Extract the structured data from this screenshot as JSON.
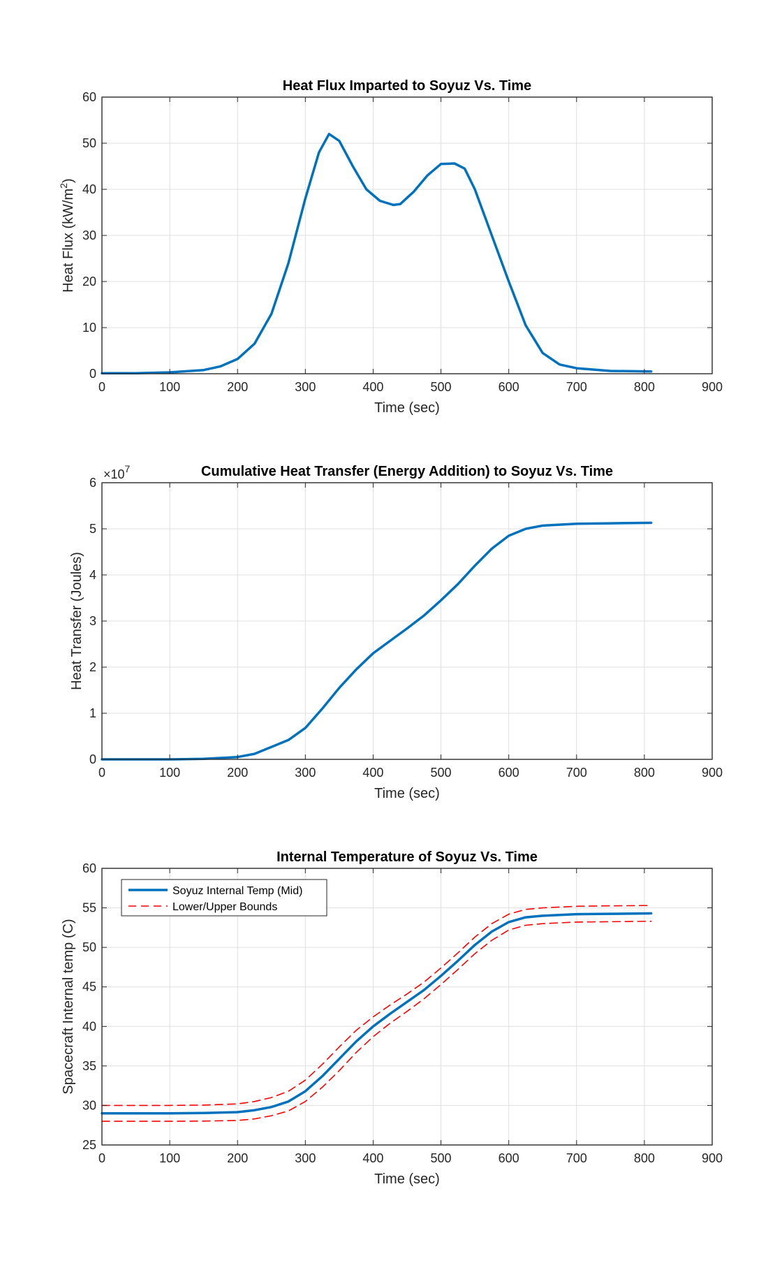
{
  "colors": {
    "main_line": "#0072BD",
    "bound_line": "#FF0000",
    "axis": "#262626",
    "grid": "#DFDFDF"
  },
  "chart_data": [
    {
      "type": "line",
      "title": "Heat Flux Imparted to Soyuz Vs. Time",
      "xlabel": "Time (sec)",
      "ylabel": "Heat Flux (kW/m",
      "ylabel_sup": "2",
      "ylabel_end": ")",
      "xlim": [
        0,
        900
      ],
      "ylim": [
        0,
        60
      ],
      "xticks": [
        0,
        100,
        200,
        300,
        400,
        500,
        600,
        700,
        800,
        900
      ],
      "yticks": [
        0,
        10,
        20,
        30,
        40,
        50,
        60
      ],
      "exponent_base": "",
      "exponent_power": "",
      "grid": true,
      "legend": [],
      "series": [
        {
          "name": "Heat Flux",
          "style": "solid",
          "x": [
            0,
            50,
            100,
            150,
            175,
            200,
            225,
            250,
            275,
            300,
            320,
            335,
            350,
            370,
            390,
            410,
            430,
            440,
            460,
            480,
            500,
            520,
            535,
            550,
            570,
            600,
            625,
            650,
            675,
            700,
            750,
            810
          ],
          "y": [
            0.1,
            0.1,
            0.3,
            0.8,
            1.6,
            3.2,
            6.5,
            13,
            24,
            38,
            48,
            52,
            50.5,
            45,
            40,
            37.5,
            36.6,
            36.8,
            39.5,
            43,
            45.5,
            45.6,
            44.5,
            40,
            32,
            20,
            10.5,
            4.5,
            2,
            1.2,
            0.6,
            0.5
          ]
        }
      ]
    },
    {
      "type": "line",
      "title": "Cumulative Heat Transfer (Energy Addition) to Soyuz Vs. Time",
      "xlabel": "Time (sec)",
      "ylabel": "Heat Transfer (Joules)",
      "ylabel_sup": "",
      "ylabel_end": "",
      "xlim": [
        0,
        900
      ],
      "ylim": [
        0,
        6
      ],
      "xticks": [
        0,
        100,
        200,
        300,
        400,
        500,
        600,
        700,
        800,
        900
      ],
      "yticks": [
        0,
        1,
        2,
        3,
        4,
        5,
        6
      ],
      "exponent_base": "×10",
      "exponent_power": "7",
      "grid": true,
      "legend": [],
      "series": [
        {
          "name": "Cumulative Heat Transfer",
          "style": "solid",
          "x": [
            0,
            100,
            150,
            200,
            225,
            250,
            275,
            300,
            325,
            350,
            375,
            400,
            425,
            450,
            475,
            500,
            525,
            550,
            575,
            600,
            625,
            650,
            700,
            750,
            810
          ],
          "y": [
            0,
            0,
            0.01,
            0.05,
            0.12,
            0.27,
            0.42,
            0.68,
            1.1,
            1.55,
            1.95,
            2.3,
            2.57,
            2.84,
            3.12,
            3.45,
            3.8,
            4.2,
            4.57,
            4.85,
            5.0,
            5.07,
            5.11,
            5.12,
            5.13
          ]
        }
      ]
    },
    {
      "type": "line",
      "title": "Internal Temperature of Soyuz Vs. Time",
      "xlabel": "Time (sec)",
      "ylabel": "Spacecraft Internal temp (C)",
      "ylabel_sup": "",
      "ylabel_end": "",
      "xlim": [
        0,
        900
      ],
      "ylim": [
        25,
        60
      ],
      "xticks": [
        0,
        100,
        200,
        300,
        400,
        500,
        600,
        700,
        800,
        900
      ],
      "yticks": [
        25,
        30,
        35,
        40,
        45,
        50,
        55,
        60
      ],
      "exponent_base": "",
      "exponent_power": "",
      "grid": true,
      "legend": [
        "Soyuz Internal Temp (Mid)",
        "Lower/Upper Bounds"
      ],
      "legend_location": "top-left",
      "series": [
        {
          "name": "Soyuz Internal Temp (Mid)",
          "style": "solid",
          "x": [
            0,
            100,
            150,
            200,
            225,
            250,
            275,
            300,
            325,
            350,
            375,
            400,
            425,
            450,
            475,
            500,
            525,
            550,
            575,
            600,
            625,
            650,
            700,
            750,
            810
          ],
          "y": [
            29,
            29,
            29.05,
            29.15,
            29.4,
            29.8,
            30.5,
            31.8,
            33.7,
            35.9,
            38.1,
            40,
            41.6,
            43.1,
            44.6,
            46.4,
            48.3,
            50.3,
            52.0,
            53.2,
            53.8,
            54.0,
            54.2,
            54.25,
            54.3
          ]
        },
        {
          "name": "Upper Bound",
          "style": "dashed",
          "x": [
            0,
            100,
            150,
            200,
            225,
            250,
            275,
            300,
            325,
            350,
            375,
            400,
            425,
            450,
            475,
            500,
            525,
            550,
            575,
            600,
            625,
            650,
            700,
            750,
            810
          ],
          "y": [
            30,
            30,
            30.05,
            30.2,
            30.5,
            31,
            31.8,
            33.2,
            35.2,
            37.4,
            39.5,
            41.2,
            42.7,
            44.1,
            45.6,
            47.4,
            49.3,
            51.3,
            53.0,
            54.2,
            54.8,
            55.0,
            55.2,
            55.25,
            55.3
          ]
        },
        {
          "name": "Lower Bound",
          "style": "dashed",
          "x": [
            0,
            100,
            150,
            200,
            225,
            250,
            275,
            300,
            325,
            350,
            375,
            400,
            425,
            450,
            475,
            500,
            525,
            550,
            575,
            600,
            625,
            650,
            700,
            750,
            810
          ],
          "y": [
            28,
            28,
            28.02,
            28.1,
            28.3,
            28.7,
            29.3,
            30.5,
            32.3,
            34.4,
            36.7,
            38.7,
            40.4,
            41.9,
            43.5,
            45.3,
            47.2,
            49.2,
            50.9,
            52.2,
            52.8,
            53.0,
            53.2,
            53.25,
            53.3
          ]
        }
      ]
    }
  ]
}
